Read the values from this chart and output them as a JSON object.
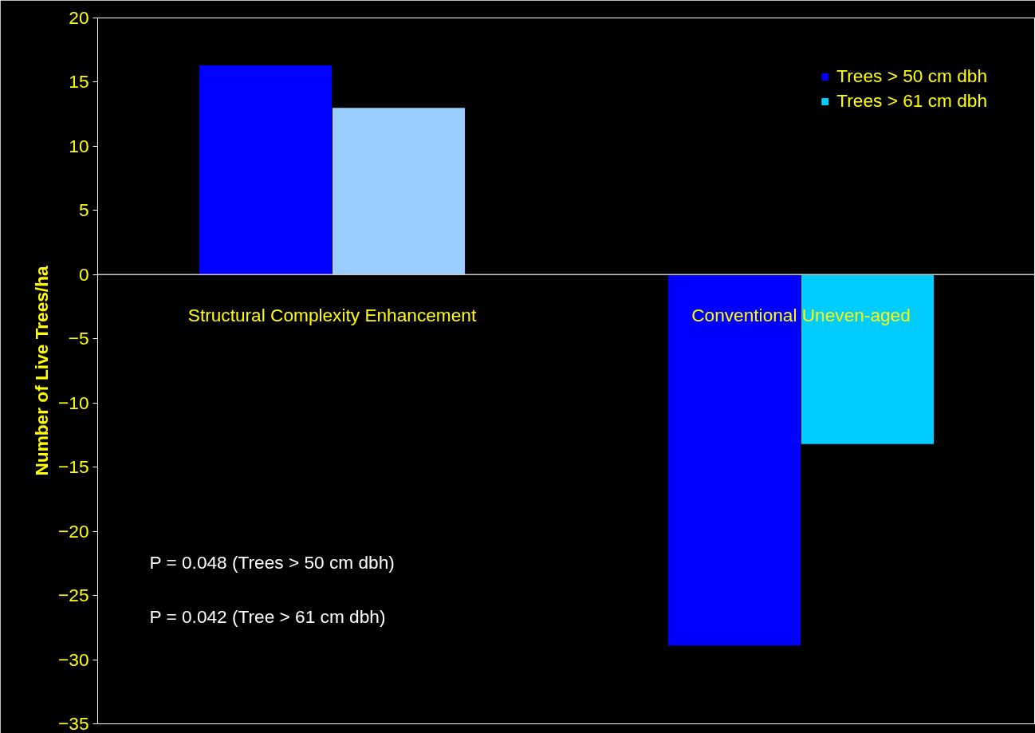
{
  "chart_data": {
    "type": "bar",
    "ylabel": "Number of Live Trees/ha",
    "categories": [
      "Structural Complexity Enhancement",
      "Conventional Uneven-aged"
    ],
    "series": [
      {
        "name": "Trees > 50 cm dbh",
        "color": "#0000ff",
        "values": [
          16.3,
          -28.9
        ]
      },
      {
        "name": "Trees > 61 cm dbh",
        "color": "#00ccff",
        "colors": [
          "#99ccff",
          "#00ccff"
        ],
        "values": [
          13.0,
          -13.2
        ]
      }
    ],
    "ylim": [
      -35,
      20
    ],
    "yticks": [
      -35,
      -30,
      -25,
      -20,
      -15,
      -10,
      -5,
      0,
      5,
      10,
      15,
      20
    ],
    "grid": false,
    "legend": "top right",
    "annotations": [
      "P = 0.048   (Trees > 50 cm dbh)",
      "P = 0.042   (Tree > 61 cm dbh)"
    ]
  }
}
